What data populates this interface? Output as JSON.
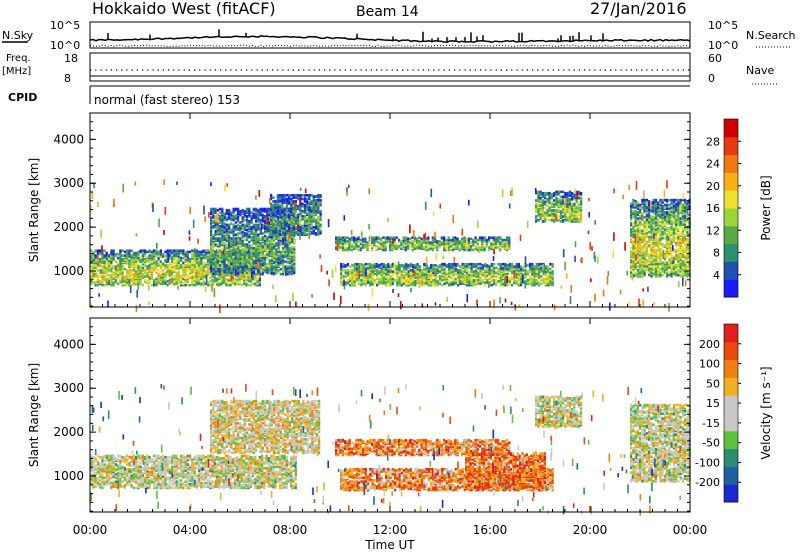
{
  "header": {
    "station": "Hokkaido West (fitACF)",
    "beam": "Beam 14",
    "date": "27/Jan/2016"
  },
  "top_panels": {
    "nsky_label": "N.Sky",
    "nsky_ticks": [
      "10^5",
      "10^0"
    ],
    "nsearch_label": "N.Search",
    "nsearch_ticks": [
      "10^5",
      "10^0"
    ],
    "freq_label_line1": "Freq.",
    "freq_label_line2": "[MHz]",
    "freq_ticks": [
      "18",
      "8"
    ],
    "nave_label": "Nave",
    "nave_ticks": [
      "60",
      "0"
    ],
    "cpid_label": "CPID",
    "cpid_text": "normal (fast stereo) 153"
  },
  "chart_data": [
    {
      "type": "heatmap",
      "title": "",
      "xlabel": "Time UT",
      "ylabel": "Slant Range [km]",
      "xlim": [
        0,
        24
      ],
      "ylim": [
        180,
        4600
      ],
      "x_ticks": [
        "00:00",
        "04:00",
        "08:00",
        "12:00",
        "16:00",
        "20:00",
        "00:00"
      ],
      "x_tick_values": [
        0,
        4,
        8,
        12,
        16,
        20,
        24
      ],
      "y_ticks": [
        "1000",
        "2000",
        "3000",
        "4000"
      ],
      "y_tick_values": [
        1000,
        2000,
        3000,
        4000
      ],
      "colorbar": {
        "label": "Power [dB]",
        "ticks": [
          "4",
          "8",
          "12",
          "16",
          "20",
          "24",
          "28"
        ],
        "colors": [
          "#1a1aff",
          "#2050b0",
          "#2e8e6e",
          "#5aa848",
          "#9ad63a",
          "#f0e030",
          "#f8b018",
          "#f27810",
          "#e83a10",
          "#d00000"
        ]
      },
      "regions": [
        {
          "t0": 0.0,
          "t1": 6.8,
          "r0": 650,
          "r1": 1450,
          "level": 0.55
        },
        {
          "t0": 4.8,
          "t1": 8.2,
          "r0": 900,
          "r1": 2400,
          "level": 0.35
        },
        {
          "t0": 7.2,
          "t1": 9.2,
          "r0": 1800,
          "r1": 2700,
          "level": 0.3
        },
        {
          "t0": 9.8,
          "t1": 16.8,
          "r0": 1450,
          "r1": 1750,
          "level": 0.45
        },
        {
          "t0": 10.0,
          "t1": 18.5,
          "r0": 650,
          "r1": 1150,
          "level": 0.5
        },
        {
          "t0": 17.8,
          "t1": 19.6,
          "r0": 2100,
          "r1": 2800,
          "level": 0.45
        },
        {
          "t0": 21.6,
          "t1": 24.0,
          "r0": 850,
          "r1": 2600,
          "level": 0.55
        }
      ]
    },
    {
      "type": "heatmap",
      "title": "",
      "xlabel": "Time UT",
      "ylabel": "Slant Range [km]",
      "xlim": [
        0,
        24
      ],
      "ylim": [
        180,
        4600
      ],
      "x_ticks": [
        "00:00",
        "04:00",
        "08:00",
        "12:00",
        "16:00",
        "20:00",
        "00:00"
      ],
      "x_tick_values": [
        0,
        4,
        8,
        12,
        16,
        20,
        24
      ],
      "y_ticks": [
        "1000",
        "2000",
        "3000",
        "4000"
      ],
      "y_tick_values": [
        1000,
        2000,
        3000,
        4000
      ],
      "colorbar": {
        "label": "Velocity [m s⁻¹]",
        "ticks": [
          "200",
          "100",
          "50",
          "15",
          "-15",
          "-50",
          "-100",
          "-200"
        ],
        "colors": [
          "#1a2ad0",
          "#2060a0",
          "#2e8c70",
          "#60c040",
          "#c8c8c8",
          "#c8c8c8",
          "#f0b020",
          "#f08010",
          "#e84a10",
          "#e02020"
        ]
      },
      "regions": [
        {
          "t0": 0.0,
          "t1": 8.2,
          "r0": 700,
          "r1": 1450,
          "level": 0.5
        },
        {
          "t0": 4.8,
          "t1": 9.2,
          "r0": 1500,
          "r1": 2700,
          "level": 0.55
        },
        {
          "t0": 9.8,
          "t1": 16.8,
          "r0": 1450,
          "r1": 1800,
          "level": 0.75
        },
        {
          "t0": 10.0,
          "t1": 18.5,
          "r0": 650,
          "r1": 1150,
          "level": 0.72
        },
        {
          "t0": 15.0,
          "t1": 18.2,
          "r0": 700,
          "r1": 1500,
          "level": 0.8
        },
        {
          "t0": 17.8,
          "t1": 19.6,
          "r0": 2100,
          "r1": 2800,
          "level": 0.5
        },
        {
          "t0": 21.6,
          "t1": 24.0,
          "r0": 850,
          "r1": 2600,
          "level": 0.5
        }
      ]
    }
  ]
}
